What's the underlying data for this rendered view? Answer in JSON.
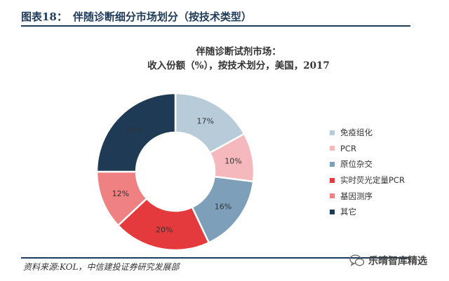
{
  "header": {
    "figure_no": "图表18：",
    "figure_title": "伴随诊断细分市场划分（按技术类型）"
  },
  "chart_data": {
    "type": "pie",
    "title": "伴随诊断试剂市场：",
    "subtitle": "收入份额（%），按技术划分，美国，2017",
    "legend": "right",
    "slices": [
      {
        "label": "免疫组化",
        "value": 17,
        "value_label": "17%",
        "color": "#b7cbd9"
      },
      {
        "label": "PCR",
        "value": 10,
        "value_label": "10%",
        "color": "#f5b9bd"
      },
      {
        "label": "原位杂交",
        "value": 16,
        "value_label": "16%",
        "color": "#7d9fb9"
      },
      {
        "label": "实时荧光定量PCR",
        "value": 20,
        "value_label": "20%",
        "color": "#e43a3d"
      },
      {
        "label": "基因测序",
        "value": 12,
        "value_label": "12%",
        "color": "#f08183"
      },
      {
        "label": "其它",
        "value": 25,
        "value_label": "25%",
        "color": "#1f3a55"
      }
    ]
  },
  "source": "资料来源:KOL，中信建投证券研究发展部",
  "watermark": {
    "icon": "wechat-icon",
    "text": "乐晴智库精选"
  }
}
